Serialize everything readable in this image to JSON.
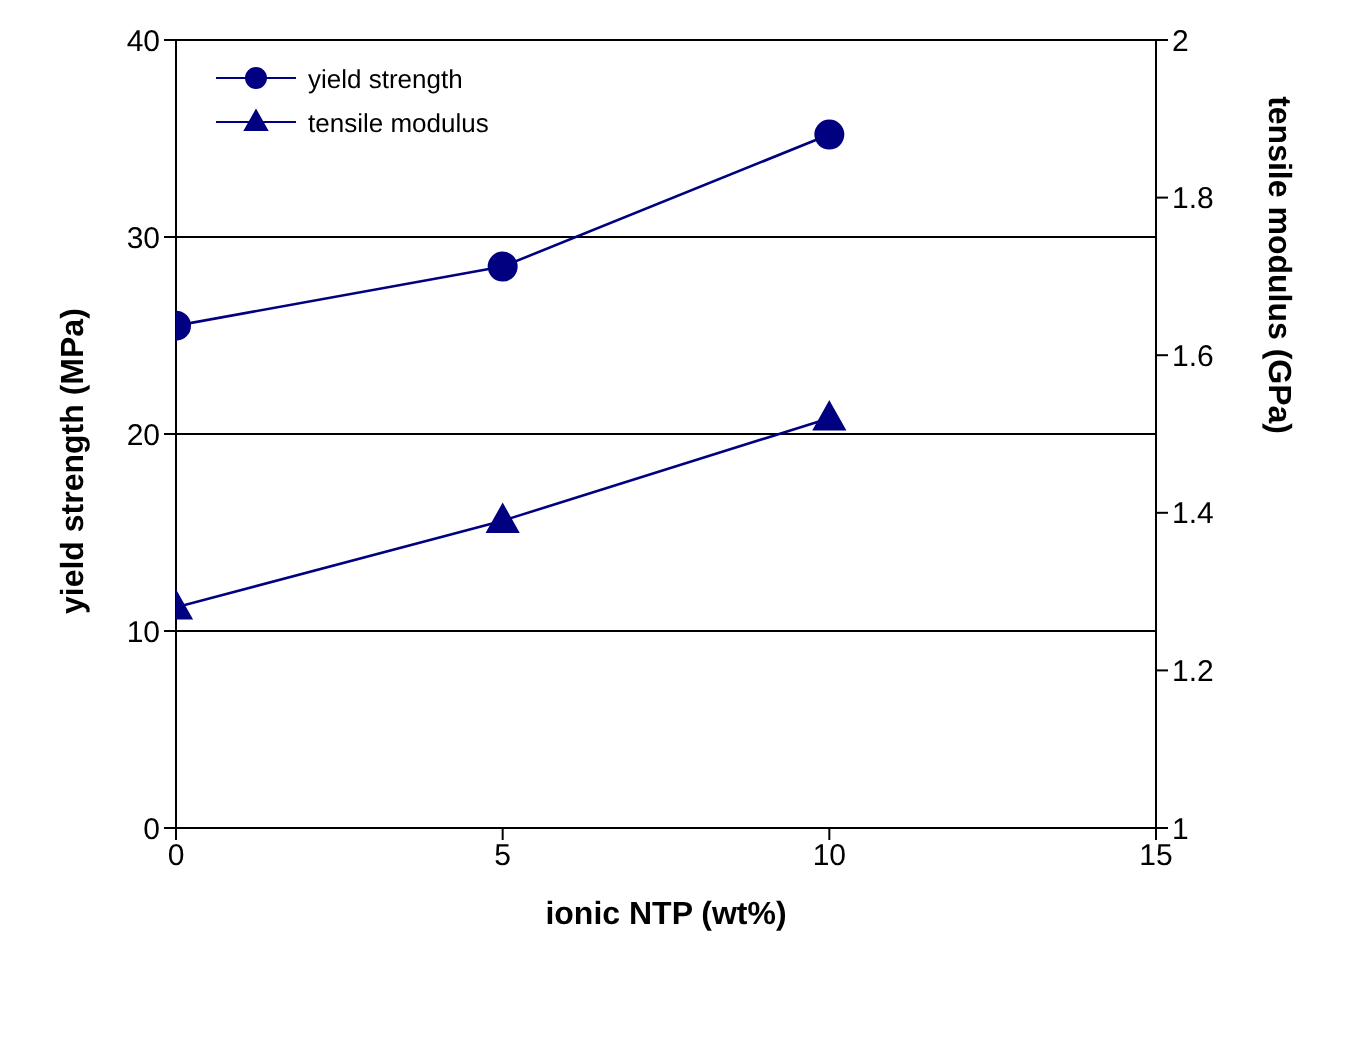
{
  "chart_data": {
    "type": "line",
    "xlabel": "ionic NTP (wt%)",
    "ylabel": "yield strength (MPa)",
    "y2label": "tensile modulus (GPa)",
    "x": [
      0,
      5,
      10
    ],
    "series": [
      {
        "name": "yield strength",
        "color": "#000080",
        "values": [
          25.5,
          28.5,
          35.2
        ],
        "marker": "circle"
      },
      {
        "name": "tensile modulus",
        "color": "#000080",
        "values": [
          1.28,
          1.39,
          1.52
        ],
        "marker": "triangle",
        "axis": "y2"
      }
    ],
    "xlim": [
      0,
      15
    ],
    "xticks": [
      0,
      5,
      10,
      15
    ],
    "ylim": [
      0,
      40
    ],
    "yticks": [
      0,
      10,
      20,
      30,
      40
    ],
    "y2lim": [
      1,
      2
    ],
    "y2ticks": [
      1,
      1.2,
      1.4,
      1.6,
      1.8,
      2
    ],
    "grid": "y",
    "legend": "top left",
    "line_style": "solid"
  }
}
